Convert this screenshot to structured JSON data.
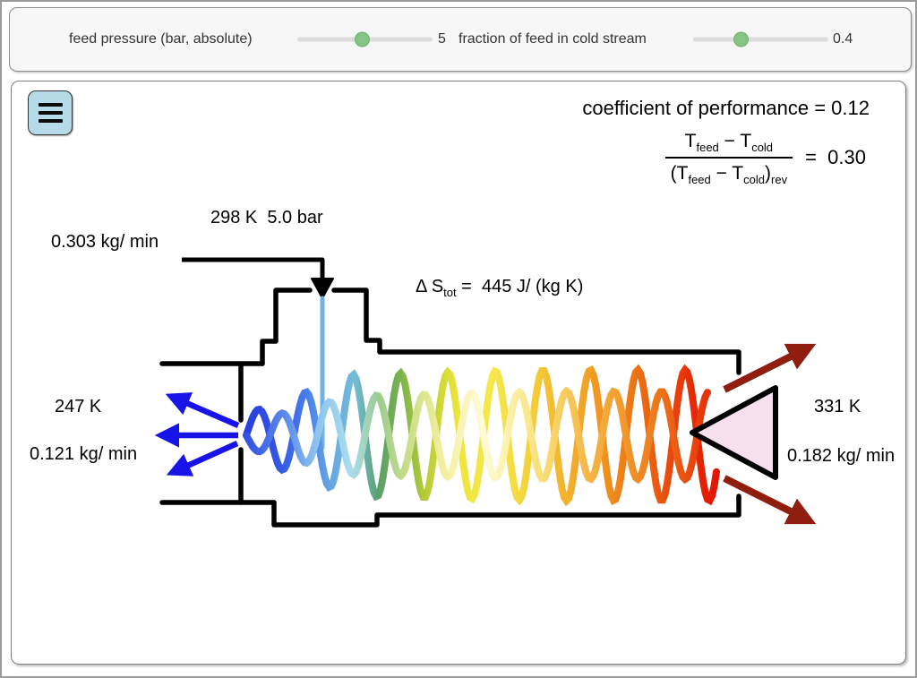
{
  "controls": {
    "feed_pressure": {
      "label": "feed pressure (bar, absolute)",
      "value": "5"
    },
    "cold_fraction": {
      "label": "fraction of feed in cold stream",
      "value": "0.4"
    }
  },
  "results": {
    "cop": "coefficient of performance = 0.12",
    "formula": {
      "T": "T",
      "T_open": "(T",
      "feed": "feed",
      "cold": "cold",
      "minus": " − ",
      "rparen": ")",
      "rev": "rev",
      "eq": "=",
      "value": "0.30"
    }
  },
  "diagram": {
    "feed_state": "298 K  5.0 bar",
    "feed_flow": "0.303 kg/ min",
    "entropy": {
      "lhs": "Δ S",
      "sub": "tot",
      "rhs": " =  445 J/ (kg K)"
    },
    "cold_temp": "247 K",
    "cold_flow": "0.121 kg/ min",
    "hot_temp": "331 K",
    "hot_flow": "0.182 kg/ min"
  },
  "icons": {
    "menu": "hamburger-icon",
    "feed_arrow": "down-arrow-icon",
    "cold_arrows": "left-arrows-icon",
    "hot_arrows": "right-arrows-icon"
  },
  "colors": {
    "slider_thumb": "#84c584",
    "menu_button_bg": "#b6dae8",
    "cold_arrow": "#1813e6",
    "hot_arrow": "#8f1d10",
    "cone_fill": "#f7e0ee",
    "feed_stream": "#6fb3e2",
    "wave_cold": "#2940dd",
    "wave_hot": "#e41204"
  }
}
